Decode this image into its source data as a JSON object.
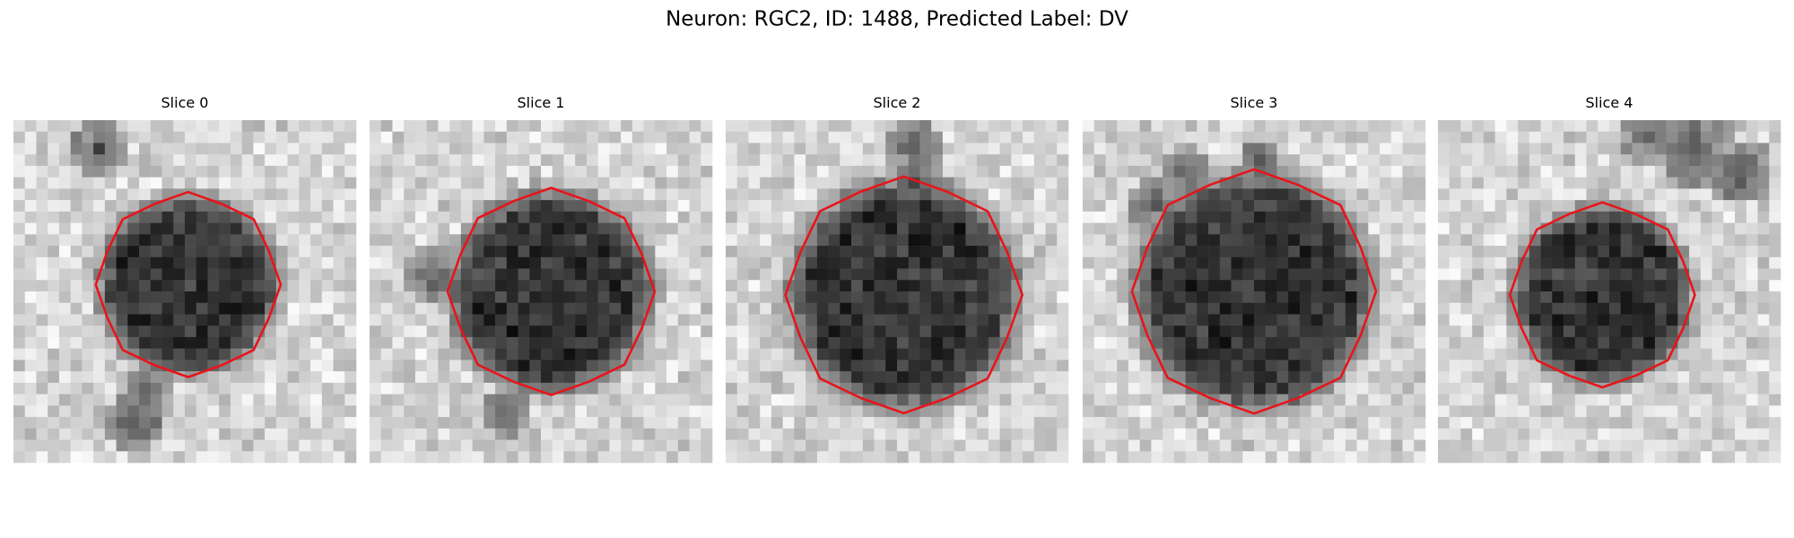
{
  "title": "Neuron: RGC2, ID: 1488, Predicted Label: DV",
  "panels": [
    {
      "title": "Slice 0"
    },
    {
      "title": "Slice 1"
    },
    {
      "title": "Slice 2"
    },
    {
      "title": "Slice 3"
    },
    {
      "title": "Slice 4"
    }
  ]
}
